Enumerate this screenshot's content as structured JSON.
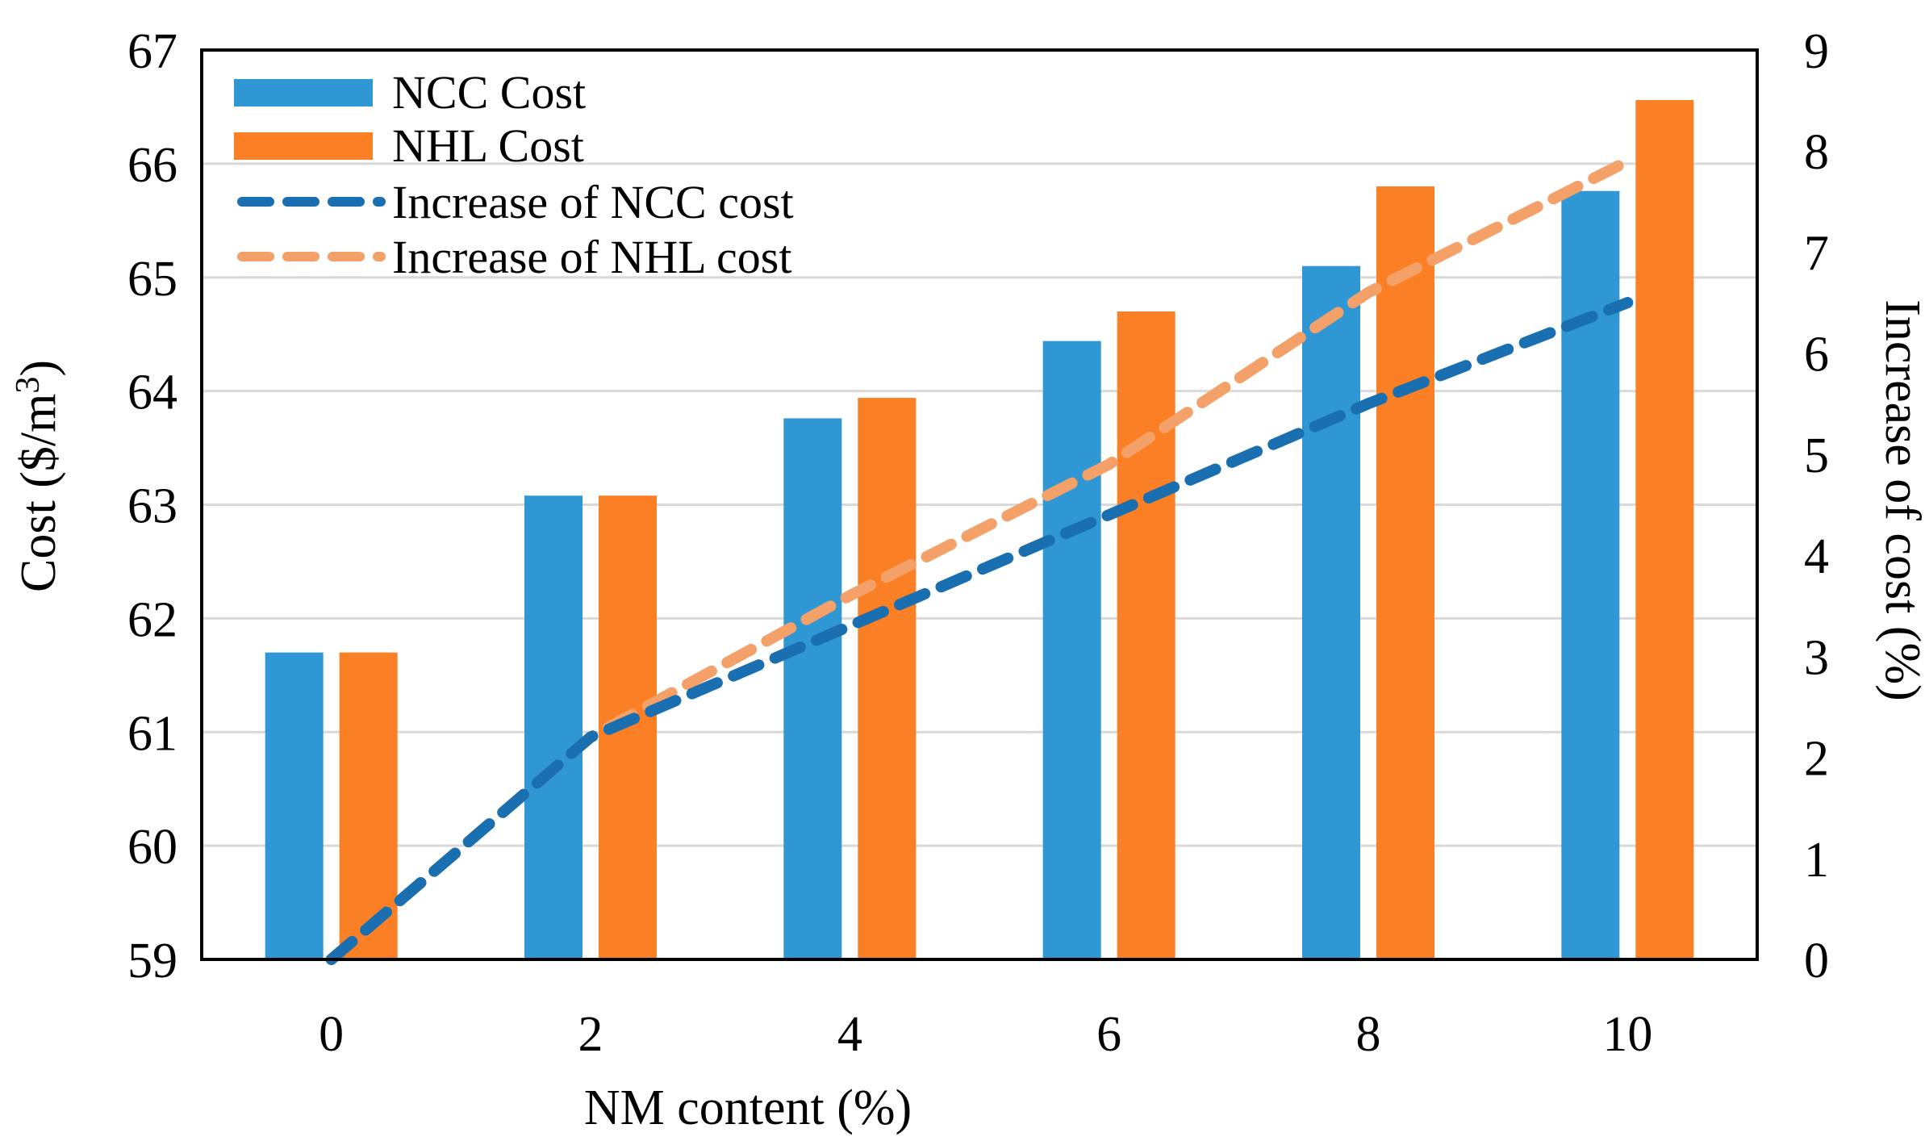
{
  "chart_data": {
    "type": "bar",
    "title": "",
    "xlabel": "NM content (%)",
    "ylabel": "Cost ($/m",
    "ylabel_superscript": "3",
    "ylabel_close": ")",
    "y2label": "Increase of cost (%)",
    "categories": [
      "0",
      "2",
      "4",
      "6",
      "8",
      "10"
    ],
    "ylim": [
      59,
      67
    ],
    "yticks": [
      "59",
      "60",
      "61",
      "62",
      "63",
      "64",
      "65",
      "66",
      "67"
    ],
    "y2lim": [
      0,
      9
    ],
    "y2ticks": [
      "0",
      "1",
      "2",
      "3",
      "4",
      "5",
      "6",
      "7",
      "8",
      "9"
    ],
    "grid": true,
    "legend_position": "top-left",
    "series": [
      {
        "name": "NCC Cost",
        "kind": "bar",
        "axis": "left",
        "color": "#2e97d4",
        "values": [
          61.7,
          63.08,
          63.76,
          64.44,
          65.1,
          65.76
        ]
      },
      {
        "name": "NHL Cost",
        "kind": "bar",
        "axis": "left",
        "color": "#fb7f24",
        "values": [
          61.7,
          63.08,
          63.94,
          64.7,
          65.8,
          66.56
        ]
      },
      {
        "name": "Increase of NCC cost",
        "kind": "line",
        "axis": "right",
        "color": "#1a6fb0",
        "values": [
          0,
          2.2,
          3.3,
          4.4,
          5.5,
          6.5
        ]
      },
      {
        "name": "Increase of NHL cost",
        "kind": "line",
        "axis": "right",
        "color": "#f4a169",
        "values": [
          0,
          2.2,
          3.6,
          4.9,
          6.6,
          7.9
        ]
      }
    ]
  }
}
